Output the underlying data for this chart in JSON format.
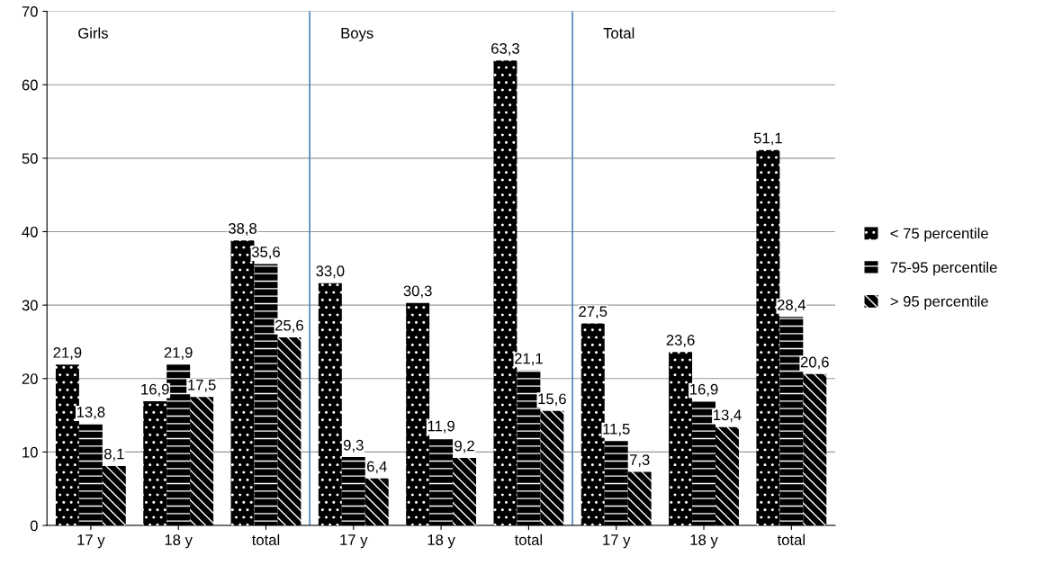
{
  "chart_data": {
    "type": "bar",
    "categories": [
      "17 y",
      "18 y",
      "total",
      "17 y",
      "18 y",
      "total",
      "17 y",
      "18 y",
      "total"
    ],
    "series": [
      {
        "name": "< 75 percentile",
        "color": "#000000",
        "values": [
          21.9,
          16.9,
          38.8,
          33.0,
          30.3,
          63.3,
          27.5,
          23.6,
          51.1
        ],
        "value_labels": [
          "21,9",
          "16,9",
          "38,8",
          "33,0",
          "30,3",
          "63,3",
          "27,5",
          "23,6",
          "51,1"
        ]
      },
      {
        "name": "75-95 percentile",
        "color": "#000000",
        "values": [
          13.8,
          21.9,
          35.6,
          9.3,
          11.9,
          21.1,
          11.5,
          16.9,
          28.4
        ],
        "value_labels": [
          "13,8",
          "21,9",
          "35,6",
          "9,3",
          "11,9",
          "21,1",
          "11,5",
          "16,9",
          "28,4"
        ]
      },
      {
        "name": "> 95 percentile",
        "color": "#000000",
        "values": [
          8.1,
          17.5,
          25.6,
          6.4,
          9.2,
          15.6,
          7.3,
          13.4,
          20.6
        ],
        "value_labels": [
          "8,1",
          "17,5",
          "25,6",
          "6,4",
          "9,2",
          "15,6",
          "7,3",
          "13,4",
          "20,6"
        ]
      }
    ],
    "annotations": [
      "Girls",
      "Boys",
      "Total"
    ],
    "ylim": [
      0,
      70
    ],
    "yticks": [
      0,
      10,
      20,
      30,
      40,
      50,
      60,
      70
    ],
    "grid": "y",
    "legend": "right"
  }
}
